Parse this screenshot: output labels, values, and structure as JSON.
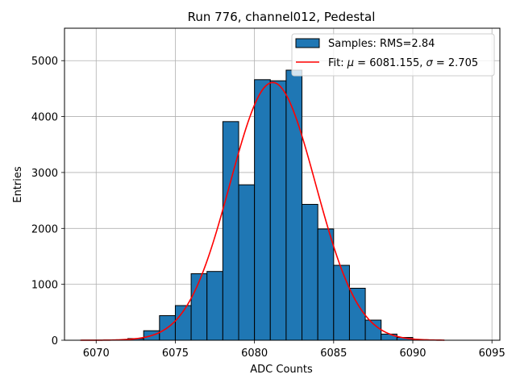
{
  "chart_data": {
    "type": "bar",
    "title": "Run 776, channel012, Pedestal",
    "xlabel": "ADC Counts",
    "ylabel": "Entries",
    "xlim": [
      6068,
      6095.5
    ],
    "ylim": [
      0,
      5580
    ],
    "xticks": [
      6070,
      6075,
      6080,
      6085,
      6090,
      6095
    ],
    "yticks": [
      0,
      1000,
      2000,
      3000,
      4000,
      5000
    ],
    "grid": true,
    "legend_position": "top-right",
    "bin_width": 1,
    "histogram": {
      "name": "Samples: RMS=2.84",
      "color": "#1f77b4",
      "bin_starts": [
        6071,
        6072,
        6073,
        6074,
        6075,
        6076,
        6077,
        6078,
        6079,
        6080,
        6081,
        6082,
        6083,
        6084,
        6085,
        6086,
        6087,
        6088,
        6089,
        6090
      ],
      "values": [
        5,
        30,
        170,
        440,
        620,
        1190,
        1230,
        3910,
        2780,
        4660,
        4640,
        4830,
        2430,
        1990,
        1340,
        930,
        360,
        110,
        50,
        8
      ]
    },
    "fit": {
      "name_prefix": "Fit: ",
      "mu_symbol": "μ",
      "mu_text": " = 6081.155, ",
      "sigma_symbol": "σ",
      "sigma_text": " = 2.705",
      "color": "#ff0000",
      "mu": 6081.155,
      "sigma": 2.705,
      "amplitude": 4610,
      "x_range": [
        6069,
        6092
      ]
    }
  }
}
